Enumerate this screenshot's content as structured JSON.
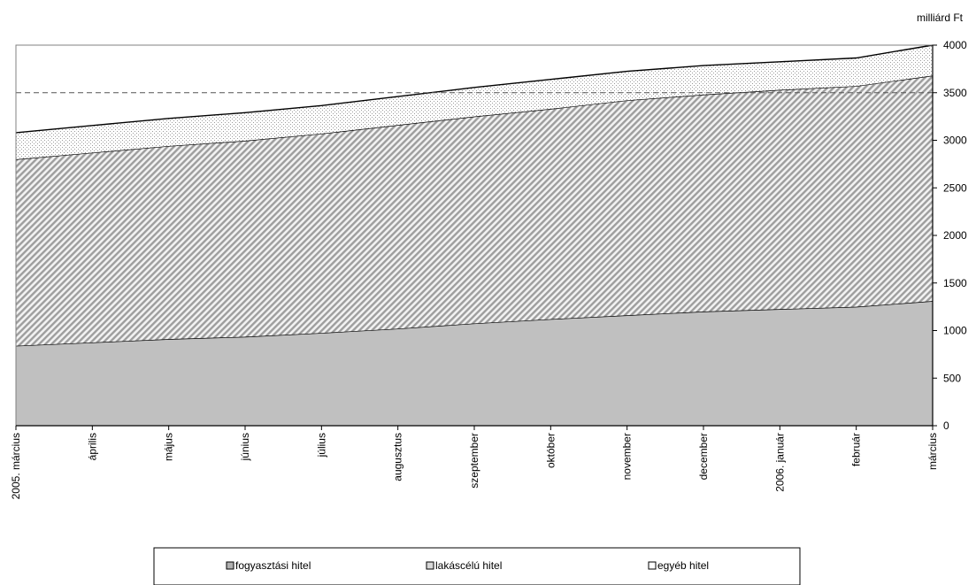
{
  "chart_data": {
    "type": "area",
    "stacked": true,
    "unit_label": "milliárd Ft",
    "title": "",
    "xlabel": "",
    "ylabel": "",
    "categories": [
      "2005. március",
      "április",
      "május",
      "június",
      "július",
      "augusztus",
      "szeptember",
      "október",
      "november",
      "december",
      "2006. január",
      "február",
      "március"
    ],
    "series": [
      {
        "name": "fogyasztási hitel",
        "values": [
          840,
          875,
          910,
          935,
          975,
          1020,
          1075,
          1120,
          1160,
          1200,
          1225,
          1250,
          1310
        ],
        "color": "#c0c0c0"
      },
      {
        "name": "lakáscélú hitel",
        "values": [
          1960,
          1995,
          2030,
          2060,
          2095,
          2140,
          2175,
          2210,
          2260,
          2280,
          2305,
          2320,
          2370
        ],
        "color": "#a6a6a6"
      },
      {
        "name": "egyéb hitel",
        "values": [
          280,
          285,
          290,
          295,
          295,
          300,
          305,
          310,
          305,
          305,
          295,
          295,
          320
        ],
        "color": "#ffffff"
      }
    ],
    "ylim": [
      0,
      4000
    ],
    "yticks": [
      0,
      500,
      1000,
      1500,
      2000,
      2500,
      3000,
      3500,
      4000
    ],
    "reference_line": 3500,
    "legend_position": "bottom"
  }
}
